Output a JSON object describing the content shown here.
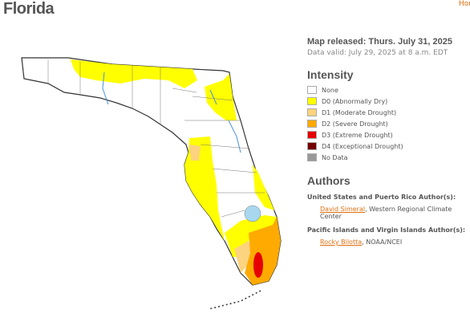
{
  "header": {
    "title": "Florida",
    "home_link": "Hor"
  },
  "map_info": {
    "released": "Map released: Thurs. July 31, 2025",
    "valid": "Data valid: July 29, 2025 at 8 a.m. EDT"
  },
  "legend": {
    "title": "Intensity",
    "items": [
      {
        "label": "None",
        "color": "#ffffff"
      },
      {
        "label": "D0 (Abnormally Dry)",
        "color": "#ffff00"
      },
      {
        "label": "D1 (Moderate Drought)",
        "color": "#fcd37f"
      },
      {
        "label": "D2 (Severe Drought)",
        "color": "#ffaa00"
      },
      {
        "label": "D3 (Extreme Drought)",
        "color": "#e60000"
      },
      {
        "label": "D4 (Exceptional Drought)",
        "color": "#730000"
      },
      {
        "label": "No Data",
        "color": "#999999"
      }
    ]
  },
  "authors": {
    "title": "Authors",
    "groups": [
      {
        "heading": "United States and Puerto Rico Author(s):",
        "name": "David Simeral",
        "affiliation": ", Western Regional Climate Center"
      },
      {
        "heading": "Pacific Islands and Virgin Islands Author(s):",
        "name": "Rocky Bilotta",
        "affiliation": ", NOAA/NCEI"
      }
    ]
  }
}
